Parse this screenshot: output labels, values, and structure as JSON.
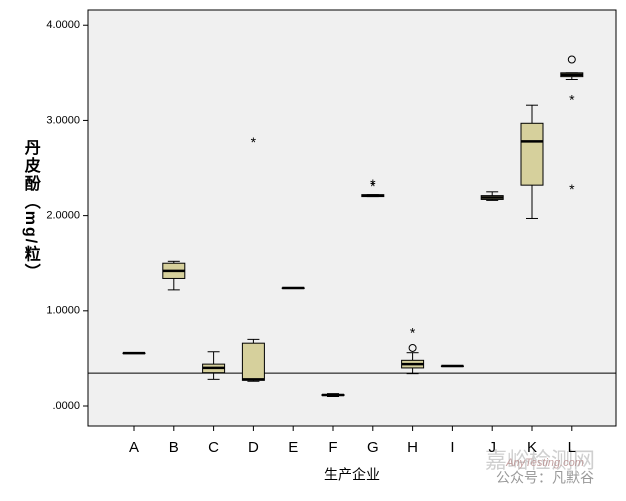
{
  "chart_data": {
    "type": "box",
    "xlabel": "生产企业",
    "ylabel": "丹皮酚（mg/粒）",
    "categories": [
      "A",
      "B",
      "C",
      "D",
      "E",
      "F",
      "G",
      "H",
      "I",
      "J",
      "K",
      "L"
    ],
    "boxes": [
      {
        "min": 0.556,
        "q1": 0.556,
        "median": 0.556,
        "q3": 0.556,
        "max": 0.556,
        "outliers": [],
        "extremes": []
      },
      {
        "min": 1.22,
        "q1": 1.34,
        "median": 1.42,
        "q3": 1.5,
        "max": 1.52,
        "outliers": [],
        "extremes": []
      },
      {
        "min": 0.28,
        "q1": 0.35,
        "median": 0.4,
        "q3": 0.44,
        "max": 0.57,
        "outliers": [],
        "extremes": []
      },
      {
        "min": 0.26,
        "q1": 0.27,
        "median": 0.28,
        "q3": 0.66,
        "max": 0.7,
        "outliers": [],
        "extremes": [
          2.79
        ]
      },
      {
        "min": 1.24,
        "q1": 1.24,
        "median": 1.24,
        "q3": 1.24,
        "max": 1.24,
        "outliers": [],
        "extremes": []
      },
      {
        "min": 0.1,
        "q1": 0.11,
        "median": 0.115,
        "q3": 0.12,
        "max": 0.13,
        "outliers": [],
        "extremes": []
      },
      {
        "min": 2.2,
        "q1": 2.2,
        "median": 2.21,
        "q3": 2.22,
        "max": 2.22,
        "outliers": [],
        "extremes": [
          2.33,
          2.35
        ]
      },
      {
        "min": 0.34,
        "q1": 0.4,
        "median": 0.44,
        "q3": 0.48,
        "max": 0.56,
        "outliers": [
          0.61
        ],
        "extremes": [
          0.79
        ]
      },
      {
        "min": 0.42,
        "q1": 0.42,
        "median": 0.42,
        "q3": 0.42,
        "max": 0.42,
        "outliers": [],
        "extremes": []
      },
      {
        "min": 2.16,
        "q1": 2.17,
        "median": 2.19,
        "q3": 2.21,
        "max": 2.25,
        "outliers": [],
        "extremes": []
      },
      {
        "min": 1.97,
        "q1": 2.32,
        "median": 2.78,
        "q3": 2.97,
        "max": 3.16,
        "outliers": [],
        "extremes": []
      },
      {
        "min": 3.43,
        "q1": 3.46,
        "median": 3.48,
        "q3": 3.5,
        "max": 3.5,
        "outliers": [
          3.64
        ],
        "extremes": [
          3.24,
          2.3
        ]
      }
    ],
    "color": "#d6d09c",
    "reference_line": 0.346,
    "ylim": [
      -0.21,
      4.16
    ],
    "yticks": [
      {
        "value": 0,
        "label": ".0000"
      },
      {
        "value": 1,
        "label": "1.0000"
      },
      {
        "value": 2,
        "label": "2.0000"
      },
      {
        "value": 3,
        "label": "3.0000"
      },
      {
        "value": 4,
        "label": "4.0000"
      }
    ],
    "watermark": [
      "嘉峪检测网",
      "AnyTesting.com",
      "公众号：凡默谷"
    ]
  }
}
